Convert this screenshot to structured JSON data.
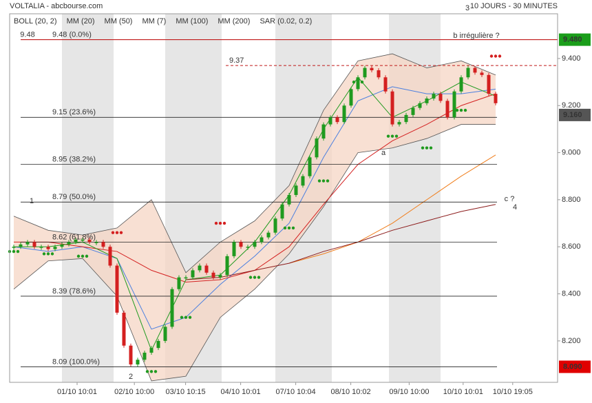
{
  "chart_data": {
    "type": "candlestick",
    "title": "VOLTALIA - abcbourse.com",
    "subtitle": "10 JOURS - 30 MINUTES",
    "xlim": [
      -1.225,
      8.725
    ],
    "ylim": [
      8.024,
      9.59
    ],
    "xticks": [
      {
        "value": 0,
        "label": "01/10 10:01"
      },
      {
        "value": 1.04,
        "label": "02/10 10:00"
      },
      {
        "value": 1.97,
        "label": "03/10 10:15"
      },
      {
        "value": 2.97,
        "label": "04/10 10:01"
      },
      {
        "value": 3.97,
        "label": "07/10 10:04"
      },
      {
        "value": 4.97,
        "label": "08/10 10:02"
      },
      {
        "value": 6.03,
        "label": "09/10 10:00"
      },
      {
        "value": 7.01,
        "label": "10/10 10:01"
      },
      {
        "value": 7.91,
        "label": "10/10 19:05"
      }
    ],
    "yticks": [
      {
        "value": 8.2,
        "label": "8.200"
      },
      {
        "value": 8.4,
        "label": "8.400"
      },
      {
        "value": 8.6,
        "label": "8.600"
      },
      {
        "value": 8.8,
        "label": "8.800"
      },
      {
        "value": 9.0,
        "label": "9.000"
      },
      {
        "value": 9.2,
        "label": "9.200"
      },
      {
        "value": 9.4,
        "label": "9.400"
      }
    ],
    "price": {
      "up_color": "#1f9a1f",
      "down_color": "#d42020",
      "x": [
        -1.15,
        -1.025,
        -0.9,
        -0.775,
        -0.65,
        -0.525,
        -0.4,
        -0.275,
        -0.15,
        -0.025,
        0.1,
        0.225,
        0.35,
        0.475,
        0.6,
        0.725,
        0.85,
        0.975,
        1.1,
        1.225,
        1.35,
        1.475,
        1.6,
        1.725,
        1.85,
        1.975,
        2.1,
        2.225,
        2.35,
        2.475,
        2.6,
        2.725,
        2.85,
        2.975,
        3.1,
        3.225,
        3.35,
        3.475,
        3.6,
        3.725,
        3.85,
        3.975,
        4.1,
        4.225,
        4.35,
        4.475,
        4.6,
        4.725,
        4.85,
        4.975,
        5.1,
        5.225,
        5.35,
        5.475,
        5.6,
        5.725,
        5.85,
        5.975,
        6.1,
        6.225,
        6.35,
        6.475,
        6.6,
        6.725,
        6.85,
        6.975,
        7.1,
        7.225,
        7.35,
        7.475,
        7.6
      ],
      "values": [
        8.6,
        8.61,
        8.62,
        8.6,
        8.6,
        8.59,
        8.6,
        8.61,
        8.62,
        8.63,
        8.63,
        8.62,
        8.62,
        8.6,
        8.52,
        8.32,
        8.18,
        8.1,
        8.12,
        8.15,
        8.17,
        8.2,
        8.26,
        8.42,
        8.47,
        8.47,
        8.5,
        8.52,
        8.49,
        8.47,
        8.48,
        8.56,
        8.62,
        8.6,
        8.6,
        8.62,
        8.64,
        8.66,
        8.72,
        8.78,
        8.82,
        8.86,
        8.9,
        8.98,
        9.06,
        9.12,
        9.15,
        9.13,
        9.2,
        9.27,
        9.32,
        9.36,
        9.35,
        9.32,
        9.26,
        9.12,
        9.13,
        9.16,
        9.19,
        9.21,
        9.23,
        9.25,
        9.22,
        9.15,
        9.26,
        9.32,
        9.36,
        9.34,
        9.33,
        9.25,
        9.21
      ]
    },
    "indicator_x": [
      -1.15,
      -0.525,
      0.1,
      0.725,
      1.35,
      1.975,
      2.6,
      3.225,
      3.85,
      4.475,
      5.1,
      5.725,
      6.35,
      6.975,
      7.6
    ],
    "bollinger": {
      "name": "BOLL (20, 2)",
      "color": "#555555",
      "fill": "#f6d5c4",
      "upper": [
        8.73,
        8.67,
        8.65,
        8.68,
        8.8,
        8.49,
        8.62,
        8.71,
        8.86,
        9.18,
        9.39,
        9.42,
        9.36,
        9.39,
        9.33
      ],
      "lower": [
        8.42,
        8.54,
        8.55,
        8.39,
        8.03,
        8.05,
        8.3,
        8.42,
        8.57,
        8.77,
        9.0,
        9.02,
        9.06,
        9.12,
        9.12
      ]
    },
    "series": [
      {
        "name": "MM (20)",
        "color": "#4a7fe0",
        "values": [
          8.6,
          8.58,
          8.6,
          8.55,
          8.25,
          8.3,
          8.44,
          8.56,
          8.7,
          8.98,
          9.22,
          9.28,
          9.25,
          9.25,
          9.27
        ]
      },
      {
        "name": "MM (50)",
        "color": "#d42020",
        "values": [
          8.62,
          8.62,
          8.6,
          8.58,
          8.5,
          8.45,
          8.46,
          8.5,
          8.6,
          8.78,
          8.95,
          9.05,
          9.12,
          9.2,
          9.25
        ]
      },
      {
        "name": "MM (7)",
        "color": "#1f9a1f",
        "values": [
          8.6,
          8.6,
          8.62,
          8.55,
          8.16,
          8.46,
          8.48,
          8.62,
          8.82,
          9.1,
          9.32,
          9.15,
          9.22,
          9.3,
          9.24
        ]
      },
      {
        "name": "MM (100)",
        "color": "#f07d1a",
        "values": [
          null,
          null,
          null,
          null,
          null,
          null,
          null,
          null,
          8.53,
          8.57,
          8.62,
          8.7,
          8.8,
          8.9,
          8.99
        ]
      },
      {
        "name": "MM (200)",
        "color": "#8b1a1a",
        "values": [
          null,
          null,
          null,
          null,
          null,
          8.46,
          8.47,
          8.5,
          8.53,
          8.58,
          8.62,
          8.67,
          8.71,
          8.75,
          8.78
        ]
      }
    ],
    "sar": {
      "name": "SAR (0.02, 0.2)",
      "color": "#d42020",
      "below_color": "#1f9a1f",
      "values": [
        8.58,
        8.57,
        8.56,
        8.66,
        8.07,
        8.3,
        8.7,
        8.47,
        8.68,
        8.88,
        9.3,
        9.07,
        9.02,
        9.18,
        9.41
      ]
    },
    "fibonacci": [
      {
        "value": 9.48,
        "label": "9.48 (0.0%)"
      },
      {
        "value": 9.15,
        "label": "9.15 (23.6%)"
      },
      {
        "value": 8.95,
        "label": "8.95 (38.2%)"
      },
      {
        "value": 8.79,
        "label": "8.79 (50.0%)"
      },
      {
        "value": 8.62,
        "label": "8.62 (61.8%)"
      },
      {
        "value": 8.39,
        "label": "8.39 (78.6%)"
      },
      {
        "value": 8.09,
        "label": "8.09 (100.0%)"
      }
    ],
    "resistance": [
      {
        "value": 9.48,
        "label": "9.48"
      },
      {
        "value": 9.37,
        "label": "9.37"
      }
    ],
    "price_tags": [
      {
        "value": 9.48,
        "label": "9.480",
        "color": "#1a9e1a"
      },
      {
        "value": 9.16,
        "label": "9.160",
        "color": "#555555"
      },
      {
        "value": 8.09,
        "label": "8.090",
        "color": "#e00000"
      }
    ],
    "annotations": [
      "1",
      "2",
      "3",
      "4",
      "a",
      "b irrégulière ?",
      "c ?"
    ]
  }
}
